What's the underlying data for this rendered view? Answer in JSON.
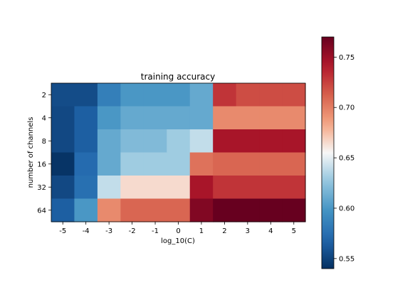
{
  "chart_data": {
    "type": "heatmap",
    "title": "training accuracy",
    "xlabel": "log_10(C)",
    "ylabel": "number of channels",
    "x_categories": [
      "-5",
      "-4",
      "-3",
      "-2",
      "-1",
      "0",
      "1",
      "2",
      "3",
      "4",
      "5"
    ],
    "y_categories": [
      "2",
      "4",
      "8",
      "16",
      "32",
      "64"
    ],
    "values": [
      [
        0.555,
        0.555,
        0.585,
        0.6,
        0.6,
        0.6,
        0.61,
        0.73,
        0.72,
        0.72,
        0.72
      ],
      [
        0.553,
        0.565,
        0.6,
        0.61,
        0.61,
        0.61,
        0.61,
        0.695,
        0.695,
        0.695,
        0.695
      ],
      [
        0.553,
        0.565,
        0.61,
        0.62,
        0.62,
        0.63,
        0.64,
        0.745,
        0.745,
        0.745,
        0.745
      ],
      [
        0.542,
        0.572,
        0.61,
        0.63,
        0.63,
        0.63,
        0.705,
        0.71,
        0.71,
        0.71,
        0.71
      ],
      [
        0.553,
        0.575,
        0.64,
        0.665,
        0.665,
        0.665,
        0.745,
        0.73,
        0.73,
        0.73,
        0.73
      ],
      [
        0.565,
        0.6,
        0.695,
        0.71,
        0.71,
        0.71,
        0.76,
        0.77,
        0.77,
        0.77,
        0.77
      ]
    ],
    "colormap": "RdBu_r",
    "vmin": 0.54,
    "vmax": 0.77,
    "colorbar_ticks": [
      "0.55",
      "0.60",
      "0.65",
      "0.70",
      "0.75"
    ],
    "colorbar_tick_values": [
      0.55,
      0.6,
      0.65,
      0.7,
      0.75
    ],
    "grid": false
  }
}
